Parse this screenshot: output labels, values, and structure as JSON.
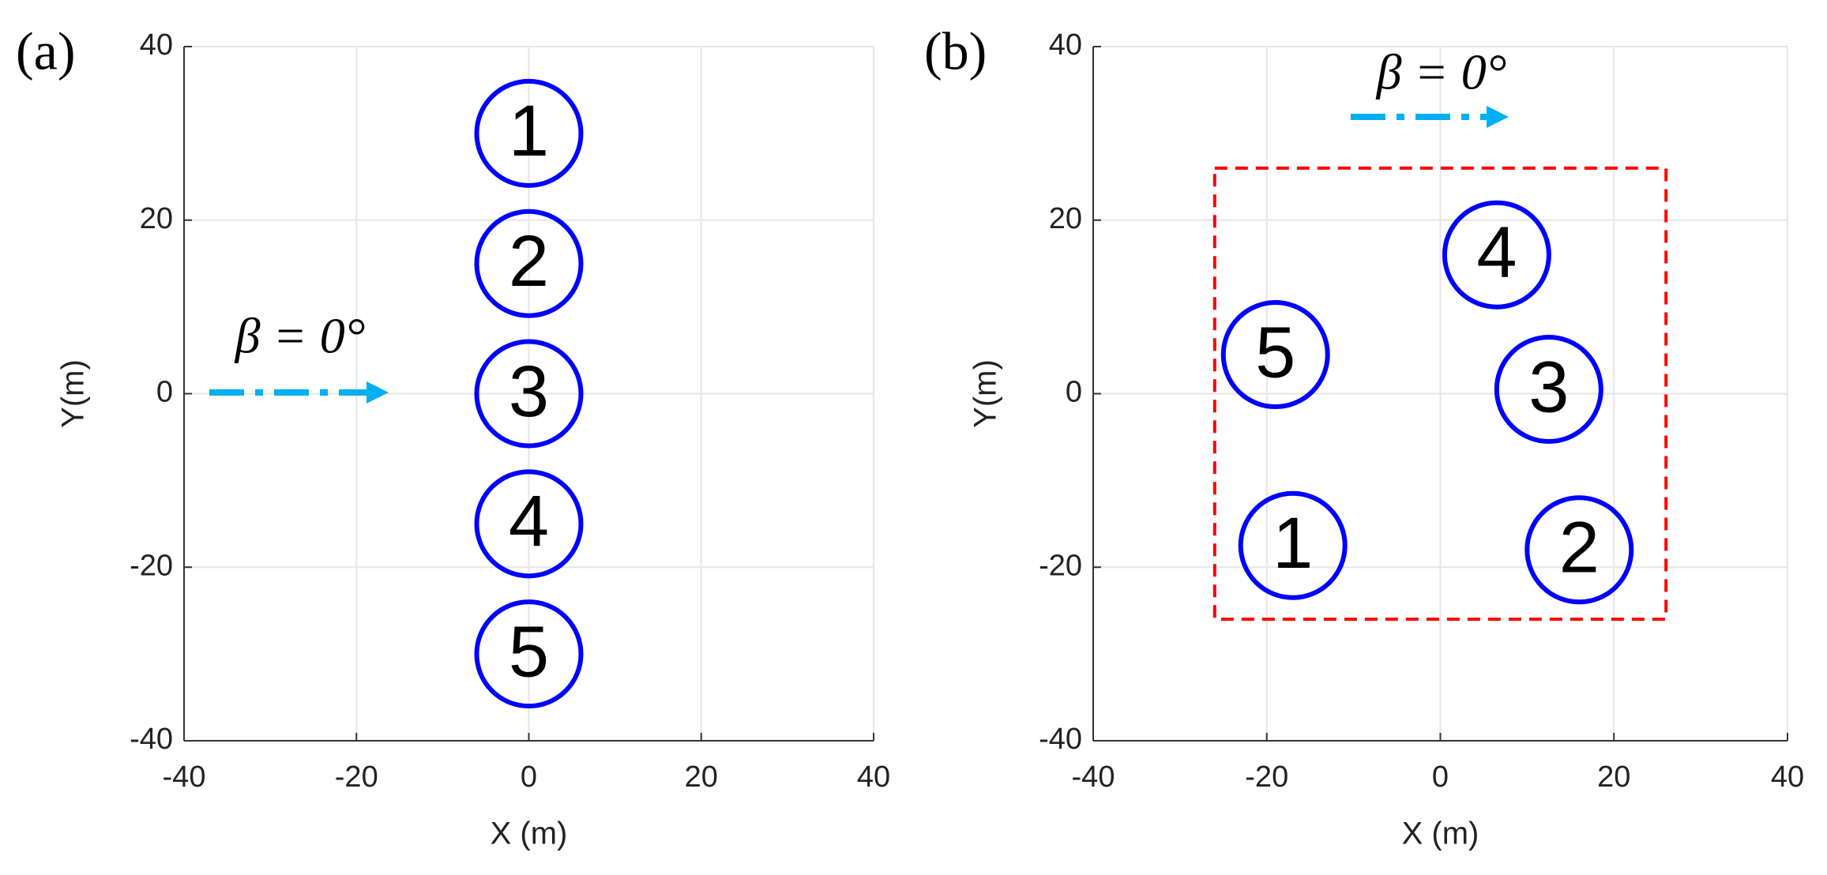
{
  "chart_data": [
    {
      "type": "scatter",
      "panel": "(a)",
      "x_label": "X (m)",
      "y_label": "Y(m)",
      "xlim": [
        -40,
        40
      ],
      "ylim": [
        -40,
        40
      ],
      "xticks": [
        -40,
        -20,
        0,
        20,
        40
      ],
      "yticks": [
        -40,
        -20,
        0,
        20,
        40
      ],
      "grid": true,
      "annotation": "β = 0°",
      "series": [
        {
          "color": "#0000ff",
          "x": [
            0,
            0,
            0,
            0,
            0
          ],
          "values": [
            30,
            15,
            0,
            -15,
            -30
          ],
          "labels": [
            "1",
            "2",
            "3",
            "4",
            "5"
          ]
        }
      ]
    },
    {
      "type": "scatter",
      "panel": "(b)",
      "x_label": "X (m)",
      "y_label": "Y(m)",
      "xlim": [
        -40,
        40
      ],
      "ylim": [
        -40,
        40
      ],
      "xticks": [
        -40,
        -20,
        0,
        20,
        40
      ],
      "yticks": [
        -40,
        -20,
        0,
        20,
        40
      ],
      "grid": true,
      "annotation": "β = 0°",
      "region": {
        "x": [
          -26,
          26
        ],
        "y": [
          -26,
          26
        ],
        "color": "#ff0000"
      },
      "series": [
        {
          "color": "#0000ff",
          "x": [
            -17,
            16,
            12.5,
            6.5,
            -19
          ],
          "values": [
            -17.5,
            -18,
            0.5,
            16,
            4.5
          ],
          "labels": [
            "1",
            "2",
            "3",
            "4",
            "5"
          ]
        }
      ]
    }
  ]
}
